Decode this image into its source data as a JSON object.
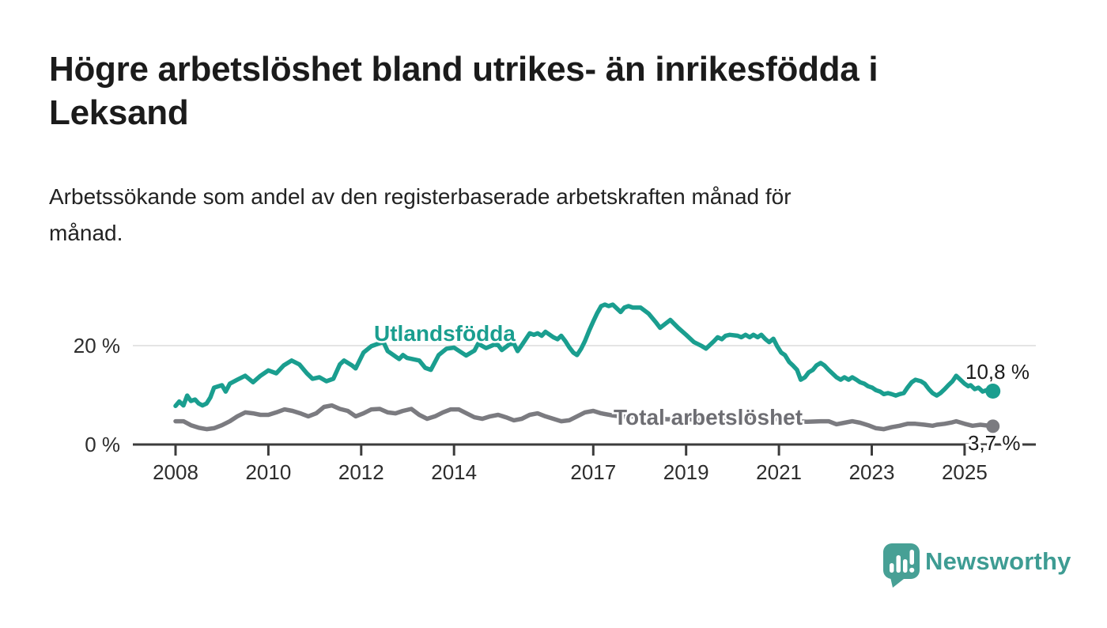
{
  "header": {
    "title": "Högre arbetslöshet bland utrikes- än inrikesfödda i\nLeksand",
    "subtitle": "Arbetssökande som andel av den registerbaserade arbetskraften månad för\nmånad."
  },
  "footer": {
    "brand": "Newsworthy"
  },
  "colors": {
    "utlandsfodda": "#1A9E8F",
    "total": "#7B7B80",
    "axis": "#3C3C3C",
    "grid": "#DCDCDC",
    "text_dark": "#1B1B1B",
    "brand_teal": "#47A095"
  },
  "chart_data": {
    "type": "line",
    "title": "Högre arbetslöshet bland utrikes- än inrikesfödda i Leksand",
    "subtitle": "Arbetssökande som andel av den registerbaserade arbetskraften månad för månad.",
    "xlabel": "",
    "ylabel": "",
    "x_unit": "year",
    "y_unit": "%",
    "x_range": [
      2008.0,
      2025.61
    ],
    "ylim": [
      0,
      30
    ],
    "grid": "y-only-at-20",
    "legend_position": "inline-labels",
    "x_ticks": [
      {
        "value": 2008,
        "label": "2008"
      },
      {
        "value": 2010,
        "label": "2010"
      },
      {
        "value": 2012,
        "label": "2012"
      },
      {
        "value": 2014,
        "label": "2014"
      },
      {
        "value": 2017,
        "label": "2017"
      },
      {
        "value": 2019,
        "label": "2019"
      },
      {
        "value": 2021,
        "label": "2021"
      },
      {
        "value": 2023,
        "label": "2023"
      },
      {
        "value": 2025,
        "label": "2025"
      }
    ],
    "y_ticks": [
      {
        "value": 0,
        "label": "0 %"
      },
      {
        "value": 20,
        "label": "20 %"
      }
    ],
    "series": [
      {
        "name": "Utlandsfödda",
        "color": "#1A9E8F",
        "label_color": "#1A9E8F",
        "end_label": "10,8 %",
        "end_value": 10.8,
        "points": [
          [
            2008.0,
            7.8
          ],
          [
            2008.08,
            8.7
          ],
          [
            2008.17,
            7.9
          ],
          [
            2008.25,
            9.9
          ],
          [
            2008.33,
            8.8
          ],
          [
            2008.42,
            9.1
          ],
          [
            2008.5,
            8.3
          ],
          [
            2008.58,
            7.9
          ],
          [
            2008.67,
            8.3
          ],
          [
            2008.75,
            9.5
          ],
          [
            2008.83,
            11.5
          ],
          [
            2009.0,
            12.0
          ],
          [
            2009.08,
            10.7
          ],
          [
            2009.17,
            12.3
          ],
          [
            2009.33,
            13.1
          ],
          [
            2009.5,
            13.9
          ],
          [
            2009.67,
            12.6
          ],
          [
            2009.83,
            13.9
          ],
          [
            2010.0,
            15.0
          ],
          [
            2010.17,
            14.4
          ],
          [
            2010.33,
            16.0
          ],
          [
            2010.5,
            17.0
          ],
          [
            2010.67,
            16.2
          ],
          [
            2010.83,
            14.4
          ],
          [
            2010.95,
            13.3
          ],
          [
            2011.1,
            13.6
          ],
          [
            2011.25,
            12.8
          ],
          [
            2011.4,
            13.3
          ],
          [
            2011.54,
            16.2
          ],
          [
            2011.63,
            17.0
          ],
          [
            2011.8,
            16.0
          ],
          [
            2011.88,
            15.4
          ],
          [
            2012.05,
            18.6
          ],
          [
            2012.22,
            19.9
          ],
          [
            2012.4,
            20.5
          ],
          [
            2012.48,
            20.7
          ],
          [
            2012.57,
            18.9
          ],
          [
            2012.74,
            17.8
          ],
          [
            2012.82,
            17.3
          ],
          [
            2012.9,
            18.1
          ],
          [
            2012.99,
            17.5
          ],
          [
            2013.25,
            17.0
          ],
          [
            2013.38,
            15.5
          ],
          [
            2013.5,
            15.1
          ],
          [
            2013.67,
            18.1
          ],
          [
            2013.84,
            19.4
          ],
          [
            2014.0,
            19.6
          ],
          [
            2014.26,
            18.0
          ],
          [
            2014.44,
            19.0
          ],
          [
            2014.52,
            20.4
          ],
          [
            2014.69,
            19.5
          ],
          [
            2014.86,
            20.2
          ],
          [
            2014.95,
            20.1
          ],
          [
            2015.03,
            19.1
          ],
          [
            2015.2,
            20.3
          ],
          [
            2015.29,
            20.4
          ],
          [
            2015.37,
            18.9
          ],
          [
            2015.46,
            20.1
          ],
          [
            2015.63,
            22.5
          ],
          [
            2015.72,
            22.2
          ],
          [
            2015.8,
            22.5
          ],
          [
            2015.89,
            22.0
          ],
          [
            2015.97,
            22.8
          ],
          [
            2016.14,
            21.7
          ],
          [
            2016.23,
            21.3
          ],
          [
            2016.31,
            22.0
          ],
          [
            2016.4,
            20.9
          ],
          [
            2016.48,
            19.7
          ],
          [
            2016.57,
            18.6
          ],
          [
            2016.65,
            18.1
          ],
          [
            2016.74,
            19.4
          ],
          [
            2016.82,
            20.9
          ],
          [
            2016.91,
            23.0
          ],
          [
            2017.0,
            24.9
          ],
          [
            2017.08,
            26.5
          ],
          [
            2017.17,
            28.0
          ],
          [
            2017.25,
            28.3
          ],
          [
            2017.33,
            28.0
          ],
          [
            2017.42,
            28.3
          ],
          [
            2017.5,
            27.6
          ],
          [
            2017.59,
            26.8
          ],
          [
            2017.67,
            27.7
          ],
          [
            2017.76,
            28.0
          ],
          [
            2017.85,
            27.7
          ],
          [
            2018.02,
            27.7
          ],
          [
            2018.19,
            26.5
          ],
          [
            2018.36,
            24.6
          ],
          [
            2018.44,
            23.6
          ],
          [
            2018.66,
            25.2
          ],
          [
            2018.83,
            23.6
          ],
          [
            2019.0,
            22.2
          ],
          [
            2019.17,
            20.7
          ],
          [
            2019.34,
            19.9
          ],
          [
            2019.43,
            19.4
          ],
          [
            2019.51,
            20.1
          ],
          [
            2019.6,
            20.9
          ],
          [
            2019.68,
            21.7
          ],
          [
            2019.77,
            21.3
          ],
          [
            2019.85,
            22.0
          ],
          [
            2019.94,
            22.2
          ],
          [
            2020.11,
            22.0
          ],
          [
            2020.19,
            21.7
          ],
          [
            2020.28,
            22.2
          ],
          [
            2020.37,
            21.7
          ],
          [
            2020.45,
            22.2
          ],
          [
            2020.54,
            21.7
          ],
          [
            2020.62,
            22.2
          ],
          [
            2020.71,
            21.3
          ],
          [
            2020.79,
            20.7
          ],
          [
            2020.88,
            21.4
          ],
          [
            2020.96,
            19.9
          ],
          [
            2021.05,
            18.6
          ],
          [
            2021.13,
            18.1
          ],
          [
            2021.22,
            16.7
          ],
          [
            2021.3,
            16.0
          ],
          [
            2021.39,
            15.1
          ],
          [
            2021.47,
            13.1
          ],
          [
            2021.56,
            13.6
          ],
          [
            2021.64,
            14.6
          ],
          [
            2021.73,
            15.1
          ],
          [
            2021.81,
            16.0
          ],
          [
            2021.9,
            16.5
          ],
          [
            2021.98,
            16.0
          ],
          [
            2022.07,
            15.1
          ],
          [
            2022.15,
            14.4
          ],
          [
            2022.24,
            13.6
          ],
          [
            2022.33,
            13.1
          ],
          [
            2022.41,
            13.6
          ],
          [
            2022.5,
            13.1
          ],
          [
            2022.58,
            13.6
          ],
          [
            2022.67,
            13.1
          ],
          [
            2022.75,
            12.6
          ],
          [
            2022.84,
            12.3
          ],
          [
            2022.92,
            11.8
          ],
          [
            2023.01,
            11.5
          ],
          [
            2023.09,
            11.0
          ],
          [
            2023.18,
            10.7
          ],
          [
            2023.26,
            10.2
          ],
          [
            2023.35,
            10.4
          ],
          [
            2023.43,
            10.2
          ],
          [
            2023.52,
            9.9
          ],
          [
            2023.6,
            10.2
          ],
          [
            2023.69,
            10.4
          ],
          [
            2023.77,
            11.5
          ],
          [
            2023.86,
            12.6
          ],
          [
            2023.94,
            13.1
          ],
          [
            2024.06,
            12.8
          ],
          [
            2024.14,
            12.3
          ],
          [
            2024.23,
            11.2
          ],
          [
            2024.31,
            10.4
          ],
          [
            2024.4,
            9.9
          ],
          [
            2024.48,
            10.4
          ],
          [
            2024.57,
            11.2
          ],
          [
            2024.65,
            12.0
          ],
          [
            2024.74,
            12.8
          ],
          [
            2024.82,
            13.9
          ],
          [
            2024.91,
            13.1
          ],
          [
            2025.0,
            12.3
          ],
          [
            2025.08,
            11.8
          ],
          [
            2025.13,
            12.0
          ],
          [
            2025.22,
            11.2
          ],
          [
            2025.3,
            11.5
          ],
          [
            2025.39,
            10.7
          ],
          [
            2025.47,
            11.0
          ],
          [
            2025.61,
            10.8
          ]
        ]
      },
      {
        "name": "Total arbetslöshet",
        "color": "#7B7B80",
        "label_color": "#6E6E73",
        "end_label": "3,7 %",
        "end_value": 3.7,
        "points": [
          [
            2008.0,
            4.7
          ],
          [
            2008.17,
            4.7
          ],
          [
            2008.33,
            3.9
          ],
          [
            2008.5,
            3.4
          ],
          [
            2008.67,
            3.1
          ],
          [
            2008.83,
            3.3
          ],
          [
            2009.0,
            3.9
          ],
          [
            2009.17,
            4.7
          ],
          [
            2009.33,
            5.7
          ],
          [
            2009.5,
            6.5
          ],
          [
            2009.67,
            6.3
          ],
          [
            2009.83,
            6.0
          ],
          [
            2010.0,
            6.0
          ],
          [
            2010.17,
            6.5
          ],
          [
            2010.35,
            7.1
          ],
          [
            2010.52,
            6.8
          ],
          [
            2010.69,
            6.3
          ],
          [
            2010.86,
            5.7
          ],
          [
            2011.03,
            6.3
          ],
          [
            2011.2,
            7.6
          ],
          [
            2011.37,
            7.9
          ],
          [
            2011.54,
            7.2
          ],
          [
            2011.71,
            6.8
          ],
          [
            2011.88,
            5.7
          ],
          [
            2012.05,
            6.3
          ],
          [
            2012.22,
            7.1
          ],
          [
            2012.4,
            7.2
          ],
          [
            2012.57,
            6.5
          ],
          [
            2012.74,
            6.3
          ],
          [
            2012.9,
            6.8
          ],
          [
            2013.08,
            7.2
          ],
          [
            2013.25,
            6.0
          ],
          [
            2013.42,
            5.2
          ],
          [
            2013.59,
            5.7
          ],
          [
            2013.76,
            6.5
          ],
          [
            2013.93,
            7.1
          ],
          [
            2014.1,
            7.1
          ],
          [
            2014.27,
            6.3
          ],
          [
            2014.44,
            5.5
          ],
          [
            2014.61,
            5.2
          ],
          [
            2014.78,
            5.7
          ],
          [
            2014.95,
            6.0
          ],
          [
            2015.12,
            5.5
          ],
          [
            2015.29,
            4.9
          ],
          [
            2015.46,
            5.2
          ],
          [
            2015.63,
            6.0
          ],
          [
            2015.8,
            6.3
          ],
          [
            2015.97,
            5.7
          ],
          [
            2016.14,
            5.2
          ],
          [
            2016.31,
            4.7
          ],
          [
            2016.48,
            4.9
          ],
          [
            2016.65,
            5.7
          ],
          [
            2016.82,
            6.5
          ],
          [
            2017.0,
            6.8
          ],
          [
            2017.17,
            6.3
          ],
          [
            2017.4,
            5.9
          ],
          [
            2017.7,
            5.6
          ],
          [
            2018.0,
            5.8
          ],
          [
            2018.3,
            5.4
          ],
          [
            2018.6,
            5.1
          ],
          [
            2018.9,
            5.3
          ],
          [
            2019.2,
            5.0
          ],
          [
            2019.5,
            4.8
          ],
          [
            2019.8,
            5.0
          ],
          [
            2020.1,
            5.3
          ],
          [
            2020.4,
            5.6
          ],
          [
            2020.7,
            5.4
          ],
          [
            2021.0,
            5.1
          ],
          [
            2021.3,
            4.8
          ],
          [
            2021.6,
            4.6
          ],
          [
            2021.9,
            4.7
          ],
          [
            2022.07,
            4.7
          ],
          [
            2022.24,
            4.1
          ],
          [
            2022.41,
            4.4
          ],
          [
            2022.58,
            4.7
          ],
          [
            2022.75,
            4.4
          ],
          [
            2022.92,
            3.9
          ],
          [
            2023.09,
            3.3
          ],
          [
            2023.26,
            3.1
          ],
          [
            2023.43,
            3.5
          ],
          [
            2023.6,
            3.8
          ],
          [
            2023.77,
            4.2
          ],
          [
            2023.94,
            4.2
          ],
          [
            2024.14,
            4.0
          ],
          [
            2024.31,
            3.8
          ],
          [
            2024.4,
            4.0
          ],
          [
            2024.57,
            4.2
          ],
          [
            2024.74,
            4.5
          ],
          [
            2024.82,
            4.7
          ],
          [
            2025.0,
            4.2
          ],
          [
            2025.17,
            3.8
          ],
          [
            2025.34,
            4.0
          ],
          [
            2025.61,
            3.7
          ]
        ]
      }
    ]
  }
}
